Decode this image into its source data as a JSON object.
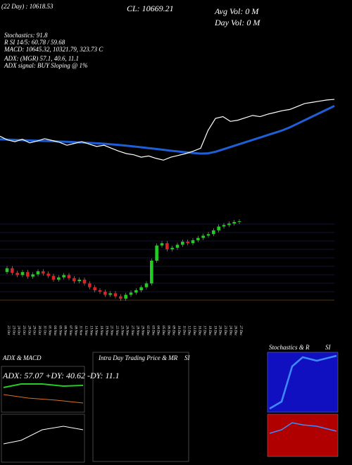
{
  "chart_data": {
    "type": "candlestick",
    "header": {
      "day_avg": "(22 Day) : 10618.53",
      "close": "CL: 10669.21",
      "avg_vol": "Avg Vol: 0  M",
      "day_vol": "Day Vol: 0  M",
      "stoch": "Stochastics: 91.8",
      "rsi": "R        SI 14/5: 60.78 / 59.68",
      "macd": "MACD: 10645.32,  10321.79,  323.73 C",
      "adx": "ADX:                          (MGR) 57.1, 40.6, 11.1",
      "adx_signal": "ADX  signal:                                BUY Sloping @ 1%"
    },
    "panels": {
      "adx_title": "ADX  & MACD",
      "adx_values": "ADX: 57.07 +DY: 40.62 -DY: 11.1",
      "intra_title": "Intra  Day Trading Price  & MR",
      "intra_si": "SI",
      "stoch_title": "Stochastics & R",
      "stoch_si": "SI"
    },
    "categories": [
      "22 Oct",
      "23 Oct",
      "24 Oct",
      "25 Oct",
      "28 Oct",
      "29 Oct",
      "30 Oct",
      "31 Oct",
      "01 Nov",
      "04 Nov",
      "05 Nov",
      "06 Nov",
      "07 Nov",
      "08 Nov",
      "11 Nov",
      "12 Nov",
      "13 Nov",
      "14 Nov",
      "18 Nov",
      "19 Nov",
      "21 Nov",
      "22 Nov",
      "25 Nov",
      "26 Nov",
      "27 Nov",
      "28 Nov",
      "29 Nov",
      "02 Dec",
      "03 Dec",
      "04 Dec",
      "05 Dec",
      "06 Dec",
      "09 Dec",
      "10 Dec",
      "11 Dec",
      "12 Dec",
      "13 Dec",
      "16 Dec",
      "17 Dec",
      "18 Dec",
      "19 Dec",
      "20 Dec",
      "23 Dec",
      "24 Dec",
      "26 Dec",
      "27 Dec"
    ],
    "open": [
      10000,
      10050,
      9990,
      9960,
      10000,
      9940,
      9970,
      10010,
      9980,
      9950,
      9900,
      9930,
      9960,
      9920,
      9880,
      9900,
      9850,
      9800,
      9760,
      9740,
      9700,
      9720,
      9680,
      9650,
      9700,
      9730,
      9760,
      9800,
      9850,
      10150,
      10350,
      10380,
      10300,
      10320,
      10360,
      10400,
      10380,
      10420,
      10450,
      10480,
      10500,
      10550,
      10600,
      10620,
      10640,
      10660
    ],
    "close": [
      10050,
      9990,
      9960,
      10000,
      9940,
      9970,
      10010,
      9980,
      9950,
      9900,
      9930,
      9960,
      9920,
      9880,
      9900,
      9850,
      9800,
      9760,
      9740,
      9700,
      9720,
      9680,
      9650,
      9700,
      9730,
      9760,
      9800,
      9850,
      10150,
      10350,
      10380,
      10300,
      10320,
      10360,
      10400,
      10380,
      10420,
      10450,
      10480,
      10500,
      10550,
      10600,
      10620,
      10640,
      10660,
      10669.21
    ],
    "ma": [
      10000,
      9995,
      9990,
      9985,
      9980,
      9975,
      9972,
      9968,
      9963,
      9958,
      9952,
      9946,
      9940,
      9933,
      9925,
      9915,
      9905,
      9893,
      9880,
      9866,
      9852,
      9838,
      9823,
      9808,
      9795,
      9782,
      9770,
      9760,
      9765,
      9790,
      9830,
      9870,
      9910,
      9950,
      9990,
      10030,
      10070,
      10110,
      10150,
      10200,
      10260,
      10320,
      10380,
      10440,
      10500,
      10560
    ],
    "ylim": [
      9500,
      10800
    ],
    "colors": {
      "price": "#ffffff",
      "ma": "#1f5fd6",
      "up": "#22cc22",
      "down": "#dd2222"
    }
  }
}
